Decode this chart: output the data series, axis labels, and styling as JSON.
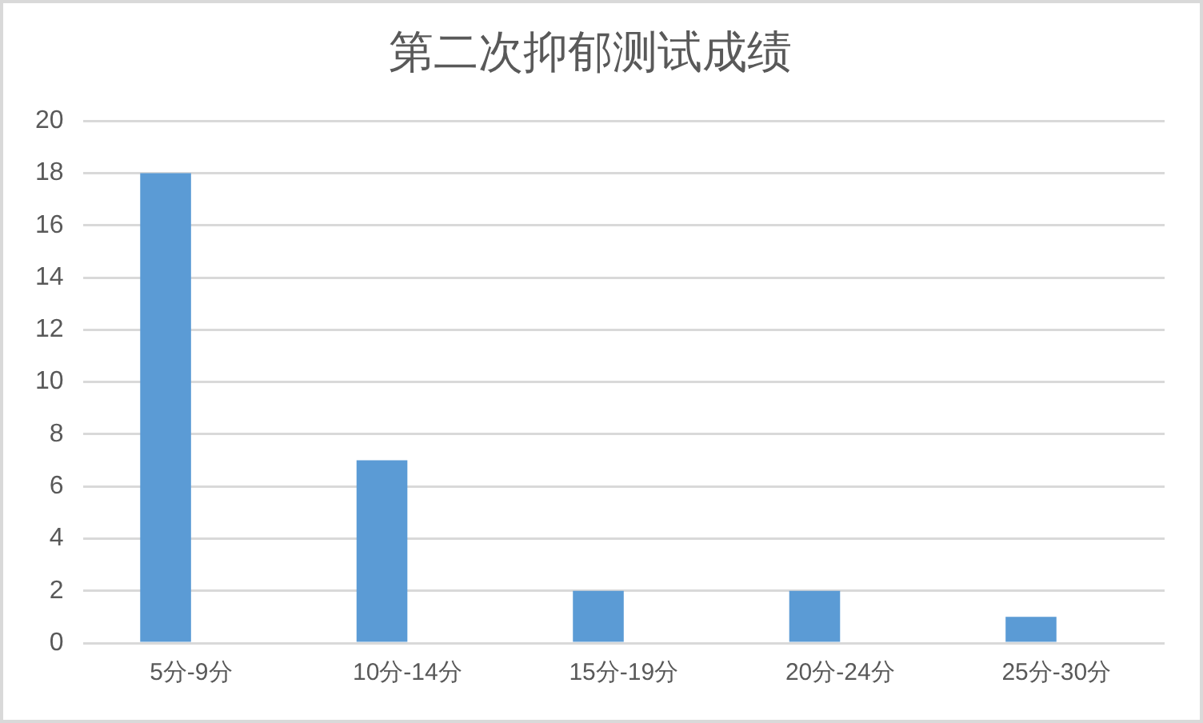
{
  "chart_data": {
    "type": "bar",
    "title": "第二次抑郁测试成绩",
    "categories": [
      "5分-9分",
      "10分-14分",
      "15分-19分",
      "20分-24分",
      "25分-30分"
    ],
    "values": [
      18,
      7,
      2,
      2,
      1
    ],
    "color": "#5b9bd5",
    "ylim": [
      0,
      20
    ],
    "yticks": [
      0,
      2,
      4,
      6,
      8,
      10,
      12,
      14,
      16,
      18,
      20
    ],
    "grid": "y"
  }
}
